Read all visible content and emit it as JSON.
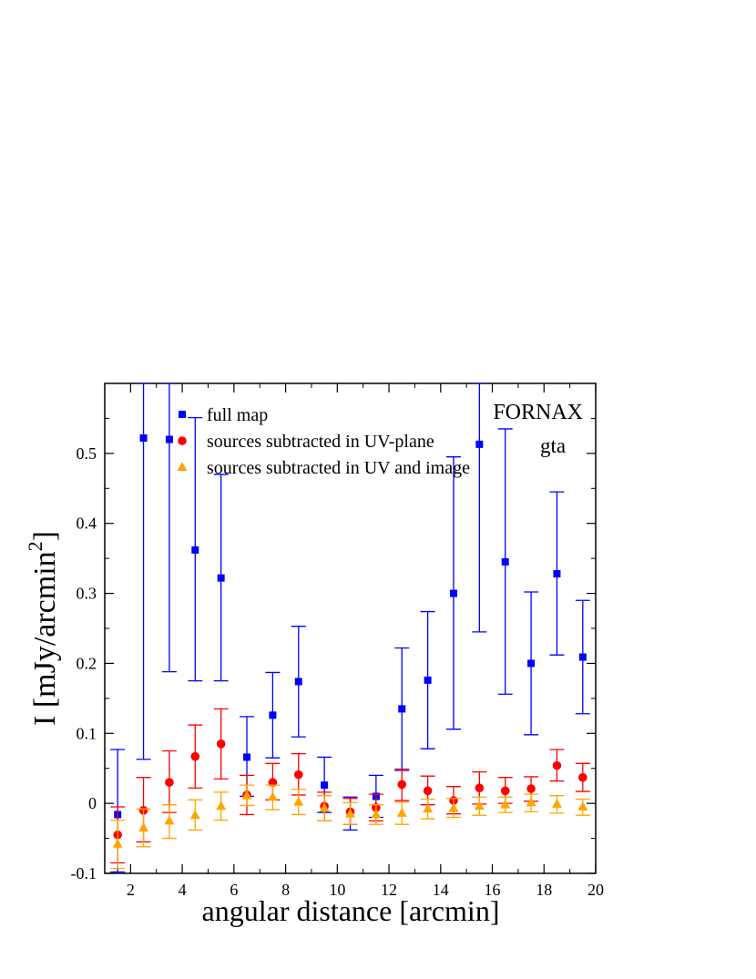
{
  "chart_data": {
    "type": "scatter",
    "xlabel": "angular distance [arcmin]",
    "ylabel_main": "I [mJy/arcmin",
    "ylabel_sup": "2",
    "ylabel_close": "]",
    "xlim": [
      1,
      20
    ],
    "ylim": [
      -0.1,
      0.6
    ],
    "xticks": [
      2,
      4,
      6,
      8,
      10,
      12,
      14,
      16,
      18,
      20
    ],
    "yticks": [
      -0.1,
      0,
      0.1,
      0.2,
      0.3,
      0.4,
      0.5
    ],
    "ytick_labels": [
      "-0.1",
      "0",
      "0.1",
      "0.2",
      "0.3",
      "0.4",
      "0.5"
    ],
    "annotations": [
      "FORNAX",
      "gta"
    ],
    "legend_position": "top-left",
    "series": [
      {
        "name": "full map",
        "color": "#0000ff",
        "marker": "square",
        "x": [
          1.5,
          2.5,
          3.5,
          4.5,
          5.5,
          6.5,
          7.5,
          8.5,
          9.5,
          10.5,
          11.5,
          12.5,
          13.5,
          14.5,
          15.5,
          16.5,
          17.5,
          18.5,
          19.5
        ],
        "y": [
          -0.016,
          0.522,
          0.52,
          0.362,
          0.322,
          0.066,
          0.126,
          0.174,
          0.026,
          -0.014,
          0.01,
          0.135,
          0.176,
          0.3,
          0.513,
          0.345,
          0.2,
          0.328,
          0.209
        ],
        "err_low": [
          -0.098,
          0.063,
          0.188,
          0.175,
          0.175,
          0.01,
          0.065,
          0.095,
          -0.013,
          -0.038,
          -0.02,
          0.047,
          0.078,
          0.106,
          0.245,
          0.156,
          0.098,
          0.212,
          0.128
        ],
        "err_high": [
          0.077,
          0.6,
          0.6,
          0.551,
          0.47,
          0.124,
          0.187,
          0.253,
          0.066,
          0.009,
          0.04,
          0.222,
          0.274,
          0.495,
          0.6,
          0.535,
          0.302,
          0.445,
          0.29
        ]
      },
      {
        "name": "sources subtracted in UV-plane",
        "color": "#ff0000",
        "marker": "circle",
        "x": [
          1.5,
          2.5,
          3.5,
          4.5,
          5.5,
          6.5,
          7.5,
          8.5,
          9.5,
          10.5,
          11.5,
          12.5,
          13.5,
          14.5,
          15.5,
          16.5,
          17.5,
          18.5,
          19.5
        ],
        "y": [
          -0.045,
          -0.01,
          0.03,
          0.067,
          0.085,
          0.012,
          0.03,
          0.041,
          -0.004,
          -0.012,
          -0.006,
          0.027,
          0.018,
          0.004,
          0.022,
          0.018,
          0.021,
          0.054,
          0.037
        ],
        "err_low": [
          -0.085,
          -0.055,
          -0.013,
          0.022,
          0.035,
          -0.016,
          0.005,
          0.012,
          -0.025,
          -0.03,
          -0.025,
          0.004,
          -0.002,
          -0.015,
          -0.001,
          0.0,
          0.003,
          0.032,
          0.017
        ],
        "err_high": [
          -0.005,
          0.037,
          0.075,
          0.112,
          0.135,
          0.04,
          0.057,
          0.071,
          0.016,
          0.007,
          0.013,
          0.049,
          0.039,
          0.024,
          0.045,
          0.037,
          0.038,
          0.077,
          0.057
        ]
      },
      {
        "name": "sources subtracted in UV and image",
        "color": "#ffa500",
        "marker": "triangle",
        "x": [
          1.5,
          2.5,
          3.5,
          4.5,
          5.5,
          6.5,
          7.5,
          8.5,
          9.5,
          10.5,
          11.5,
          12.5,
          13.5,
          14.5,
          15.5,
          16.5,
          17.5,
          18.5,
          19.5
        ],
        "y": [
          -0.058,
          -0.035,
          -0.025,
          -0.017,
          -0.004,
          0.011,
          0.009,
          0.002,
          -0.007,
          -0.015,
          -0.016,
          -0.014,
          -0.008,
          -0.007,
          -0.004,
          -0.002,
          0.001,
          -0.001,
          -0.005
        ],
        "err_low": [
          -0.093,
          -0.062,
          -0.05,
          -0.038,
          -0.024,
          -0.003,
          -0.009,
          -0.016,
          -0.025,
          -0.03,
          -0.03,
          -0.03,
          -0.022,
          -0.02,
          -0.017,
          -0.013,
          -0.012,
          -0.014,
          -0.017
        ],
        "err_high": [
          -0.024,
          -0.008,
          -0.002,
          0.005,
          0.016,
          0.026,
          0.026,
          0.02,
          0.011,
          0.001,
          -0.002,
          0.002,
          0.006,
          0.007,
          0.009,
          0.009,
          0.013,
          0.011,
          0.006
        ]
      }
    ]
  }
}
